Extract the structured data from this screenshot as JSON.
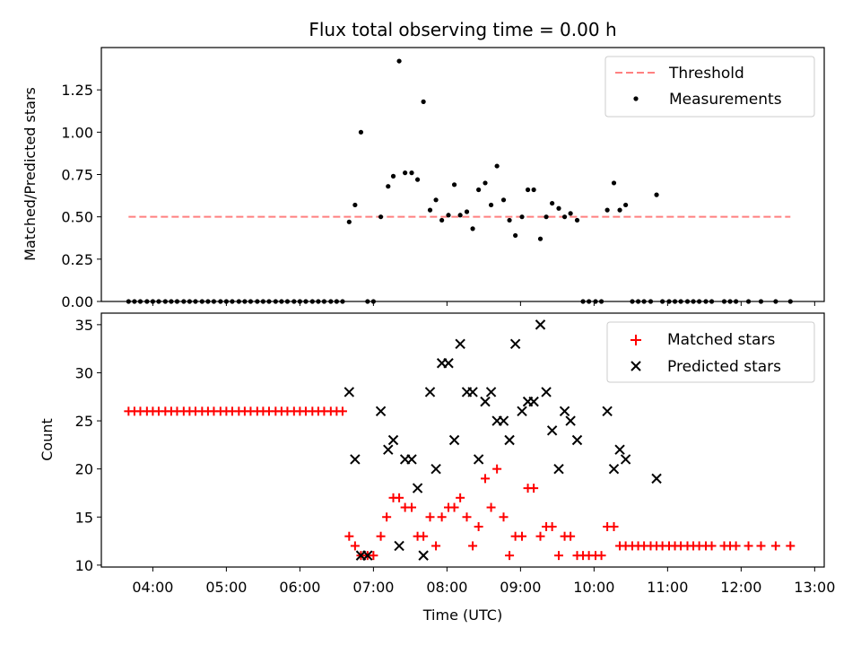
{
  "chart_data": [
    {
      "type": "scatter",
      "title": "Flux total observing time = 0.00 h",
      "ylabel": "Matched/Predicted stars",
      "xlabel": "",
      "ylim": [
        0,
        1.5
      ],
      "xlim_hours": [
        3.3,
        13.13
      ],
      "yticks": [
        "0.00",
        "0.25",
        "0.50",
        "0.75",
        "1.00",
        "1.25"
      ],
      "ytick_values": [
        0,
        0.25,
        0.5,
        0.75,
        1.0,
        1.25
      ],
      "xtick_values": [
        4,
        5,
        6,
        7,
        8,
        9,
        10,
        11,
        12,
        13
      ],
      "legend": {
        "position": "upper right",
        "entries": [
          "Threshold",
          "Measurements"
        ]
      },
      "threshold": {
        "name": "Threshold",
        "value": 0.5,
        "x_start": 3.67,
        "x_end": 12.67,
        "color": "#ff8080"
      },
      "measurements_color": "#000000",
      "series": [
        {
          "name": "Measurements",
          "x": [
            3.67,
            3.75,
            3.83,
            3.92,
            4.0,
            4.08,
            4.17,
            4.25,
            4.33,
            4.42,
            4.5,
            4.58,
            4.67,
            4.75,
            4.83,
            4.92,
            5.0,
            5.08,
            5.17,
            5.25,
            5.33,
            5.42,
            5.5,
            5.58,
            5.67,
            5.75,
            5.83,
            5.92,
            6.0,
            6.08,
            6.17,
            6.25,
            6.33,
            6.42,
            6.5,
            6.58,
            6.67,
            6.75,
            6.83,
            6.92,
            7.0,
            7.1,
            7.2,
            7.27,
            7.35,
            7.43,
            7.52,
            7.6,
            7.68,
            7.77,
            7.85,
            7.93,
            8.02,
            8.1,
            8.18,
            8.27,
            8.35,
            8.43,
            8.52,
            8.6,
            8.68,
            8.77,
            8.85,
            8.93,
            9.02,
            9.1,
            9.18,
            9.27,
            9.35,
            9.43,
            9.52,
            9.6,
            9.68,
            9.77,
            9.85,
            9.93,
            10.02,
            10.1,
            10.18,
            10.27,
            10.35,
            10.43,
            10.52,
            10.6,
            10.68,
            10.77,
            10.85,
            10.93,
            11.02,
            11.1,
            11.18,
            11.27,
            11.35,
            11.43,
            11.52,
            11.6,
            11.77,
            11.85,
            11.93,
            12.1,
            12.27,
            12.47,
            12.67
          ],
          "y": [
            0,
            0,
            0,
            0,
            0,
            0,
            0,
            0,
            0,
            0,
            0,
            0,
            0,
            0,
            0,
            0,
            0,
            0,
            0,
            0,
            0,
            0,
            0,
            0,
            0,
            0,
            0,
            0,
            0,
            0,
            0,
            0,
            0,
            0,
            0,
            0,
            0.47,
            0.57,
            1.0,
            0,
            0,
            0.5,
            0.68,
            0.74,
            1.42,
            0.76,
            0.76,
            0.72,
            1.18,
            0.54,
            0.6,
            0.48,
            0.51,
            0.69,
            0.51,
            0.53,
            0.43,
            0.66,
            0.7,
            0.57,
            0.8,
            0.6,
            0.48,
            0.39,
            0.5,
            0.66,
            0.66,
            0.37,
            0.5,
            0.58,
            0.55,
            0.5,
            0.52,
            0.48,
            0,
            0,
            0,
            0,
            0.54,
            0.7,
            0.54,
            0.57,
            0,
            0,
            0,
            0,
            0.63,
            0,
            0,
            0,
            0,
            0,
            0,
            0,
            0,
            0,
            0,
            0,
            0,
            0,
            0,
            0,
            0
          ]
        }
      ]
    },
    {
      "type": "scatter",
      "title": "",
      "ylabel": "Count",
      "xlabel": "Time (UTC)",
      "ylim": [
        9.8,
        36.2
      ],
      "xlim_hours": [
        3.3,
        13.13
      ],
      "yticks": [
        "10",
        "15",
        "20",
        "25",
        "30",
        "35"
      ],
      "ytick_values": [
        10,
        15,
        20,
        25,
        30,
        35
      ],
      "xticks": [
        "04:00",
        "05:00",
        "06:00",
        "07:00",
        "08:00",
        "09:00",
        "10:00",
        "11:00",
        "12:00",
        "13:00"
      ],
      "xtick_values": [
        4,
        5,
        6,
        7,
        8,
        9,
        10,
        11,
        12,
        13
      ],
      "legend": {
        "position": "upper right",
        "entries": [
          "Matched stars",
          "Predicted stars"
        ]
      },
      "series": [
        {
          "name": "Matched stars",
          "marker": "+",
          "color": "#ff0000",
          "x": [
            3.67,
            3.75,
            3.83,
            3.92,
            4.0,
            4.08,
            4.17,
            4.25,
            4.33,
            4.42,
            4.5,
            4.58,
            4.67,
            4.75,
            4.83,
            4.92,
            5.0,
            5.08,
            5.17,
            5.25,
            5.33,
            5.42,
            5.5,
            5.58,
            5.67,
            5.75,
            5.83,
            5.92,
            6.0,
            6.08,
            6.17,
            6.25,
            6.33,
            6.42,
            6.5,
            6.58,
            6.67,
            6.75,
            6.83,
            6.92,
            7.0,
            7.1,
            7.18,
            7.27,
            7.35,
            7.43,
            7.52,
            7.6,
            7.68,
            7.77,
            7.85,
            7.93,
            8.02,
            8.1,
            8.18,
            8.27,
            8.35,
            8.43,
            8.52,
            8.6,
            8.68,
            8.77,
            8.85,
            8.93,
            9.02,
            9.1,
            9.18,
            9.27,
            9.35,
            9.43,
            9.52,
            9.6,
            9.68,
            9.77,
            9.85,
            9.93,
            10.02,
            10.1,
            10.18,
            10.27,
            10.35,
            10.43,
            10.52,
            10.6,
            10.68,
            10.77,
            10.85,
            10.93,
            11.02,
            11.1,
            11.18,
            11.27,
            11.35,
            11.43,
            11.52,
            11.6,
            11.77,
            11.85,
            11.93,
            12.1,
            12.27,
            12.47,
            12.67
          ],
          "y": [
            26,
            26,
            26,
            26,
            26,
            26,
            26,
            26,
            26,
            26,
            26,
            26,
            26,
            26,
            26,
            26,
            26,
            26,
            26,
            26,
            26,
            26,
            26,
            26,
            26,
            26,
            26,
            26,
            26,
            26,
            26,
            26,
            26,
            26,
            26,
            26,
            13,
            12,
            11,
            11,
            11,
            13,
            15,
            17,
            17,
            16,
            16,
            13,
            13,
            15,
            12,
            15,
            16,
            16,
            17,
            15,
            12,
            14,
            19,
            16,
            20,
            15,
            11,
            13,
            13,
            18,
            18,
            13,
            14,
            14,
            11,
            13,
            13,
            11,
            11,
            11,
            11,
            11,
            14,
            14,
            12,
            12,
            12,
            12,
            12,
            12,
            12,
            12,
            12,
            12,
            12,
            12,
            12,
            12,
            12,
            12,
            12,
            12,
            12,
            12,
            12,
            12,
            12
          ]
        },
        {
          "name": "Predicted stars",
          "marker": "x",
          "color": "#000000",
          "x": [
            6.67,
            6.75,
            6.83,
            6.92,
            7.1,
            7.2,
            7.27,
            7.35,
            7.43,
            7.52,
            7.6,
            7.68,
            7.77,
            7.85,
            7.93,
            8.02,
            8.1,
            8.18,
            8.27,
            8.35,
            8.43,
            8.52,
            8.6,
            8.68,
            8.77,
            8.85,
            8.93,
            9.02,
            9.1,
            9.18,
            9.27,
            9.35,
            9.43,
            9.52,
            9.6,
            9.68,
            9.77,
            10.18,
            10.27,
            10.35,
            10.43,
            10.85
          ],
          "y": [
            28,
            21,
            11,
            11,
            26,
            22,
            23,
            12,
            21,
            21,
            18,
            11,
            28,
            20,
            31,
            31,
            23,
            33,
            28,
            28,
            21,
            27,
            28,
            25,
            25,
            23,
            33,
            26,
            27,
            27,
            35,
            28,
            24,
            20,
            26,
            25,
            23,
            26,
            20,
            22,
            21,
            19
          ]
        }
      ]
    }
  ]
}
